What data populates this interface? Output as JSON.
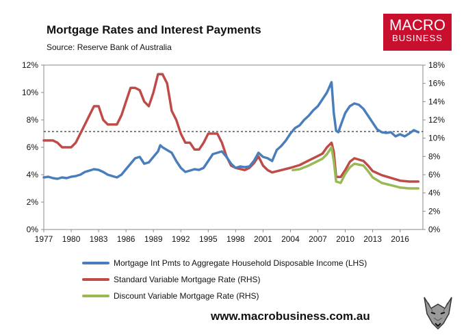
{
  "header": {
    "title": "Mortgage Rates and Interest Payments",
    "source": "Source: Reserve Bank of Australia"
  },
  "logo": {
    "line1": "MACRO",
    "line2": "BUSINESS"
  },
  "website": "www.macrobusiness.com.au",
  "colors": {
    "series1": "#4a7ebb",
    "series2": "#be4b48",
    "series3": "#98b954",
    "reference": "#000000"
  },
  "chart_data": {
    "type": "line",
    "xlim": [
      1977,
      2018.5
    ],
    "xticks": [
      "1977",
      "1980",
      "1983",
      "1986",
      "1989",
      "1992",
      "1995",
      "1998",
      "2001",
      "2004",
      "2007",
      "2010",
      "2013",
      "2016"
    ],
    "ylim_left": [
      0,
      12
    ],
    "ylim_right": [
      0,
      18
    ],
    "yticks_left": [
      "0%",
      "2%",
      "4%",
      "6%",
      "8%",
      "10%",
      "12%"
    ],
    "yticks_right": [
      "0%",
      "2%",
      "4%",
      "6%",
      "8%",
      "10%",
      "12%",
      "14%",
      "16%",
      "18%"
    ],
    "reference_line_left": 7.15,
    "series": [
      {
        "name": "Mortgage Int Pmts to Aggregate Household Disposable Income (LHS)",
        "axis": "left",
        "points": [
          [
            1977,
            3.8
          ],
          [
            1977.5,
            3.85
          ],
          [
            1978,
            3.75
          ],
          [
            1978.5,
            3.7
          ],
          [
            1979,
            3.8
          ],
          [
            1979.5,
            3.75
          ],
          [
            1980,
            3.85
          ],
          [
            1980.5,
            3.9
          ],
          [
            1981,
            4.0
          ],
          [
            1981.5,
            4.2
          ],
          [
            1982,
            4.3
          ],
          [
            1982.5,
            4.4
          ],
          [
            1983,
            4.35
          ],
          [
            1983.5,
            4.2
          ],
          [
            1984,
            4.0
          ],
          [
            1984.5,
            3.9
          ],
          [
            1985,
            3.8
          ],
          [
            1985.5,
            4.0
          ],
          [
            1986,
            4.4
          ],
          [
            1986.5,
            4.8
          ],
          [
            1987,
            5.2
          ],
          [
            1987.5,
            5.3
          ],
          [
            1988,
            4.8
          ],
          [
            1988.5,
            4.9
          ],
          [
            1989,
            5.3
          ],
          [
            1989.5,
            5.7
          ],
          [
            1989.75,
            6.15
          ],
          [
            1990,
            6.0
          ],
          [
            1990.5,
            5.8
          ],
          [
            1991,
            5.6
          ],
          [
            1991.5,
            5.0
          ],
          [
            1992,
            4.5
          ],
          [
            1992.5,
            4.2
          ],
          [
            1993,
            4.3
          ],
          [
            1993.5,
            4.4
          ],
          [
            1994,
            4.35
          ],
          [
            1994.5,
            4.5
          ],
          [
            1995,
            5.0
          ],
          [
            1995.5,
            5.5
          ],
          [
            1996,
            5.6
          ],
          [
            1996.5,
            5.7
          ],
          [
            1997,
            5.3
          ],
          [
            1997.5,
            4.8
          ],
          [
            1998,
            4.5
          ],
          [
            1998.5,
            4.6
          ],
          [
            1999,
            4.55
          ],
          [
            1999.5,
            4.6
          ],
          [
            2000,
            5.0
          ],
          [
            2000.5,
            5.6
          ],
          [
            2001,
            5.3
          ],
          [
            2001.5,
            5.2
          ],
          [
            2002,
            5.0
          ],
          [
            2002.5,
            5.8
          ],
          [
            2003,
            6.1
          ],
          [
            2003.5,
            6.5
          ],
          [
            2004,
            7.0
          ],
          [
            2004.5,
            7.4
          ],
          [
            2005,
            7.6
          ],
          [
            2005.5,
            8.0
          ],
          [
            2006,
            8.3
          ],
          [
            2006.5,
            8.7
          ],
          [
            2007,
            9.0
          ],
          [
            2007.5,
            9.5
          ],
          [
            2008,
            10.0
          ],
          [
            2008.5,
            10.75
          ],
          [
            2008.75,
            8.5
          ],
          [
            2009,
            7.2
          ],
          [
            2009.25,
            7.1
          ],
          [
            2009.5,
            7.6
          ],
          [
            2010,
            8.5
          ],
          [
            2010.5,
            9.0
          ],
          [
            2011,
            9.2
          ],
          [
            2011.5,
            9.1
          ],
          [
            2012,
            8.8
          ],
          [
            2012.5,
            8.3
          ],
          [
            2013,
            7.8
          ],
          [
            2013.5,
            7.3
          ],
          [
            2014,
            7.1
          ],
          [
            2014.5,
            7.05
          ],
          [
            2015,
            7.1
          ],
          [
            2015.5,
            6.8
          ],
          [
            2016,
            6.95
          ],
          [
            2016.5,
            6.8
          ],
          [
            2017,
            7.0
          ],
          [
            2017.5,
            7.25
          ],
          [
            2018,
            7.1
          ]
        ]
      },
      {
        "name": "Standard Variable Mortgage Rate (RHS)",
        "axis": "right",
        "points": [
          [
            1977,
            9.75
          ],
          [
            1978,
            9.75
          ],
          [
            1978.5,
            9.5
          ],
          [
            1979,
            9.0
          ],
          [
            1980,
            9.0
          ],
          [
            1980.5,
            9.5
          ],
          [
            1981,
            10.5
          ],
          [
            1981.5,
            11.5
          ],
          [
            1982,
            12.5
          ],
          [
            1982.5,
            13.5
          ],
          [
            1983,
            13.5
          ],
          [
            1983.5,
            12.0
          ],
          [
            1984,
            11.5
          ],
          [
            1985,
            11.5
          ],
          [
            1985.5,
            12.5
          ],
          [
            1986,
            14.0
          ],
          [
            1986.5,
            15.5
          ],
          [
            1987,
            15.5
          ],
          [
            1987.5,
            15.25
          ],
          [
            1988,
            14.0
          ],
          [
            1988.5,
            13.5
          ],
          [
            1989,
            15.0
          ],
          [
            1989.5,
            17.0
          ],
          [
            1990,
            17.0
          ],
          [
            1990.5,
            16.0
          ],
          [
            1991,
            13.0
          ],
          [
            1991.5,
            12.0
          ],
          [
            1992,
            10.5
          ],
          [
            1992.5,
            9.5
          ],
          [
            1993,
            9.5
          ],
          [
            1993.5,
            8.75
          ],
          [
            1994,
            8.75
          ],
          [
            1994.5,
            9.5
          ],
          [
            1995,
            10.5
          ],
          [
            1995.5,
            10.5
          ],
          [
            1996,
            10.5
          ],
          [
            1996.5,
            9.5
          ],
          [
            1997,
            8.0
          ],
          [
            1997.5,
            7.0
          ],
          [
            1998,
            6.75
          ],
          [
            1999,
            6.5
          ],
          [
            1999.5,
            6.75
          ],
          [
            2000,
            7.25
          ],
          [
            2000.5,
            8.0
          ],
          [
            2001,
            7.0
          ],
          [
            2001.5,
            6.5
          ],
          [
            2002,
            6.25
          ],
          [
            2003,
            6.5
          ],
          [
            2004,
            6.75
          ],
          [
            2005,
            7.05
          ],
          [
            2006,
            7.55
          ],
          [
            2007,
            8.05
          ],
          [
            2007.5,
            8.3
          ],
          [
            2008,
            9.0
          ],
          [
            2008.5,
            9.5
          ],
          [
            2008.75,
            8.5
          ],
          [
            2009,
            5.75
          ],
          [
            2009.5,
            5.75
          ],
          [
            2010,
            6.5
          ],
          [
            2010.5,
            7.4
          ],
          [
            2011,
            7.8
          ],
          [
            2012,
            7.5
          ],
          [
            2012.5,
            7.0
          ],
          [
            2013,
            6.4
          ],
          [
            2014,
            5.95
          ],
          [
            2015,
            5.65
          ],
          [
            2016,
            5.35
          ],
          [
            2017,
            5.25
          ],
          [
            2018,
            5.25
          ]
        ]
      },
      {
        "name": "Discount Variable Mortgage Rate (RHS)",
        "axis": "right",
        "points": [
          [
            2004.25,
            6.5
          ],
          [
            2005,
            6.6
          ],
          [
            2006,
            7.0
          ],
          [
            2007,
            7.5
          ],
          [
            2007.5,
            7.75
          ],
          [
            2008,
            8.25
          ],
          [
            2008.5,
            9.0
          ],
          [
            2008.75,
            7.5
          ],
          [
            2009,
            5.25
          ],
          [
            2009.5,
            5.1
          ],
          [
            2010,
            6.1
          ],
          [
            2010.5,
            6.8
          ],
          [
            2011,
            7.2
          ],
          [
            2012,
            7.0
          ],
          [
            2012.5,
            6.4
          ],
          [
            2013,
            5.7
          ],
          [
            2014,
            5.1
          ],
          [
            2015,
            4.85
          ],
          [
            2016,
            4.6
          ],
          [
            2017,
            4.5
          ],
          [
            2018,
            4.5
          ]
        ]
      }
    ]
  }
}
